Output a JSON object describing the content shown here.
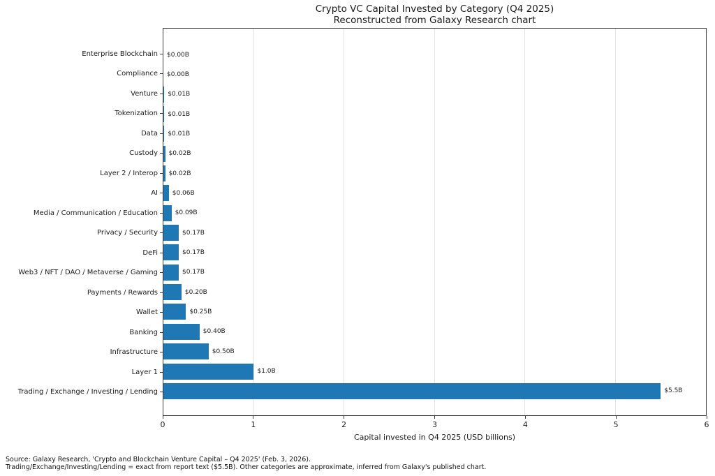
{
  "chart_data": {
    "type": "bar",
    "orientation": "horizontal",
    "title": "Crypto VC Capital Invested by Category (Q4 2025)",
    "subtitle": "Reconstructed from Galaxy Research chart",
    "xlabel": "Capital invested in Q4 2025 (USD billions)",
    "xlim": [
      0,
      6
    ],
    "xticks": [
      0,
      1,
      2,
      3,
      4,
      5,
      6
    ],
    "grid": "vertical",
    "bar_color": "#1f77b4",
    "categories": [
      "Enterprise Blockchain",
      "Compliance",
      "Venture",
      "Tokenization",
      "Data",
      "Custody",
      "Layer 2 / Interop",
      "AI",
      "Media / Communication / Education",
      "Privacy / Security",
      "DeFi",
      "Web3 / NFT / DAO / Metaverse / Gaming",
      "Payments / Rewards",
      "Wallet",
      "Banking",
      "Infrastructure",
      "Layer 1",
      "Trading / Exchange / Investing / Lending"
    ],
    "values": [
      0.0,
      0.0,
      0.01,
      0.01,
      0.01,
      0.02,
      0.02,
      0.06,
      0.09,
      0.17,
      0.17,
      0.17,
      0.2,
      0.25,
      0.4,
      0.5,
      1.0,
      5.5
    ],
    "value_labels": [
      "$0.00B",
      "$0.00B",
      "$0.01B",
      "$0.01B",
      "$0.01B",
      "$0.02B",
      "$0.02B",
      "$0.06B",
      "$0.09B",
      "$0.17B",
      "$0.17B",
      "$0.17B",
      "$0.20B",
      "$0.25B",
      "$0.40B",
      "$0.50B",
      "$1.0B",
      "$5.5B"
    ],
    "notes": [
      "Source: Galaxy Research, 'Crypto and Blockchain Venture Capital – Q4 2025' (Feb. 3, 2026).",
      "Trading/Exchange/Investing/Lending = exact from report text ($5.5B). Other categories are approximate, inferred from Galaxy's published chart."
    ]
  }
}
